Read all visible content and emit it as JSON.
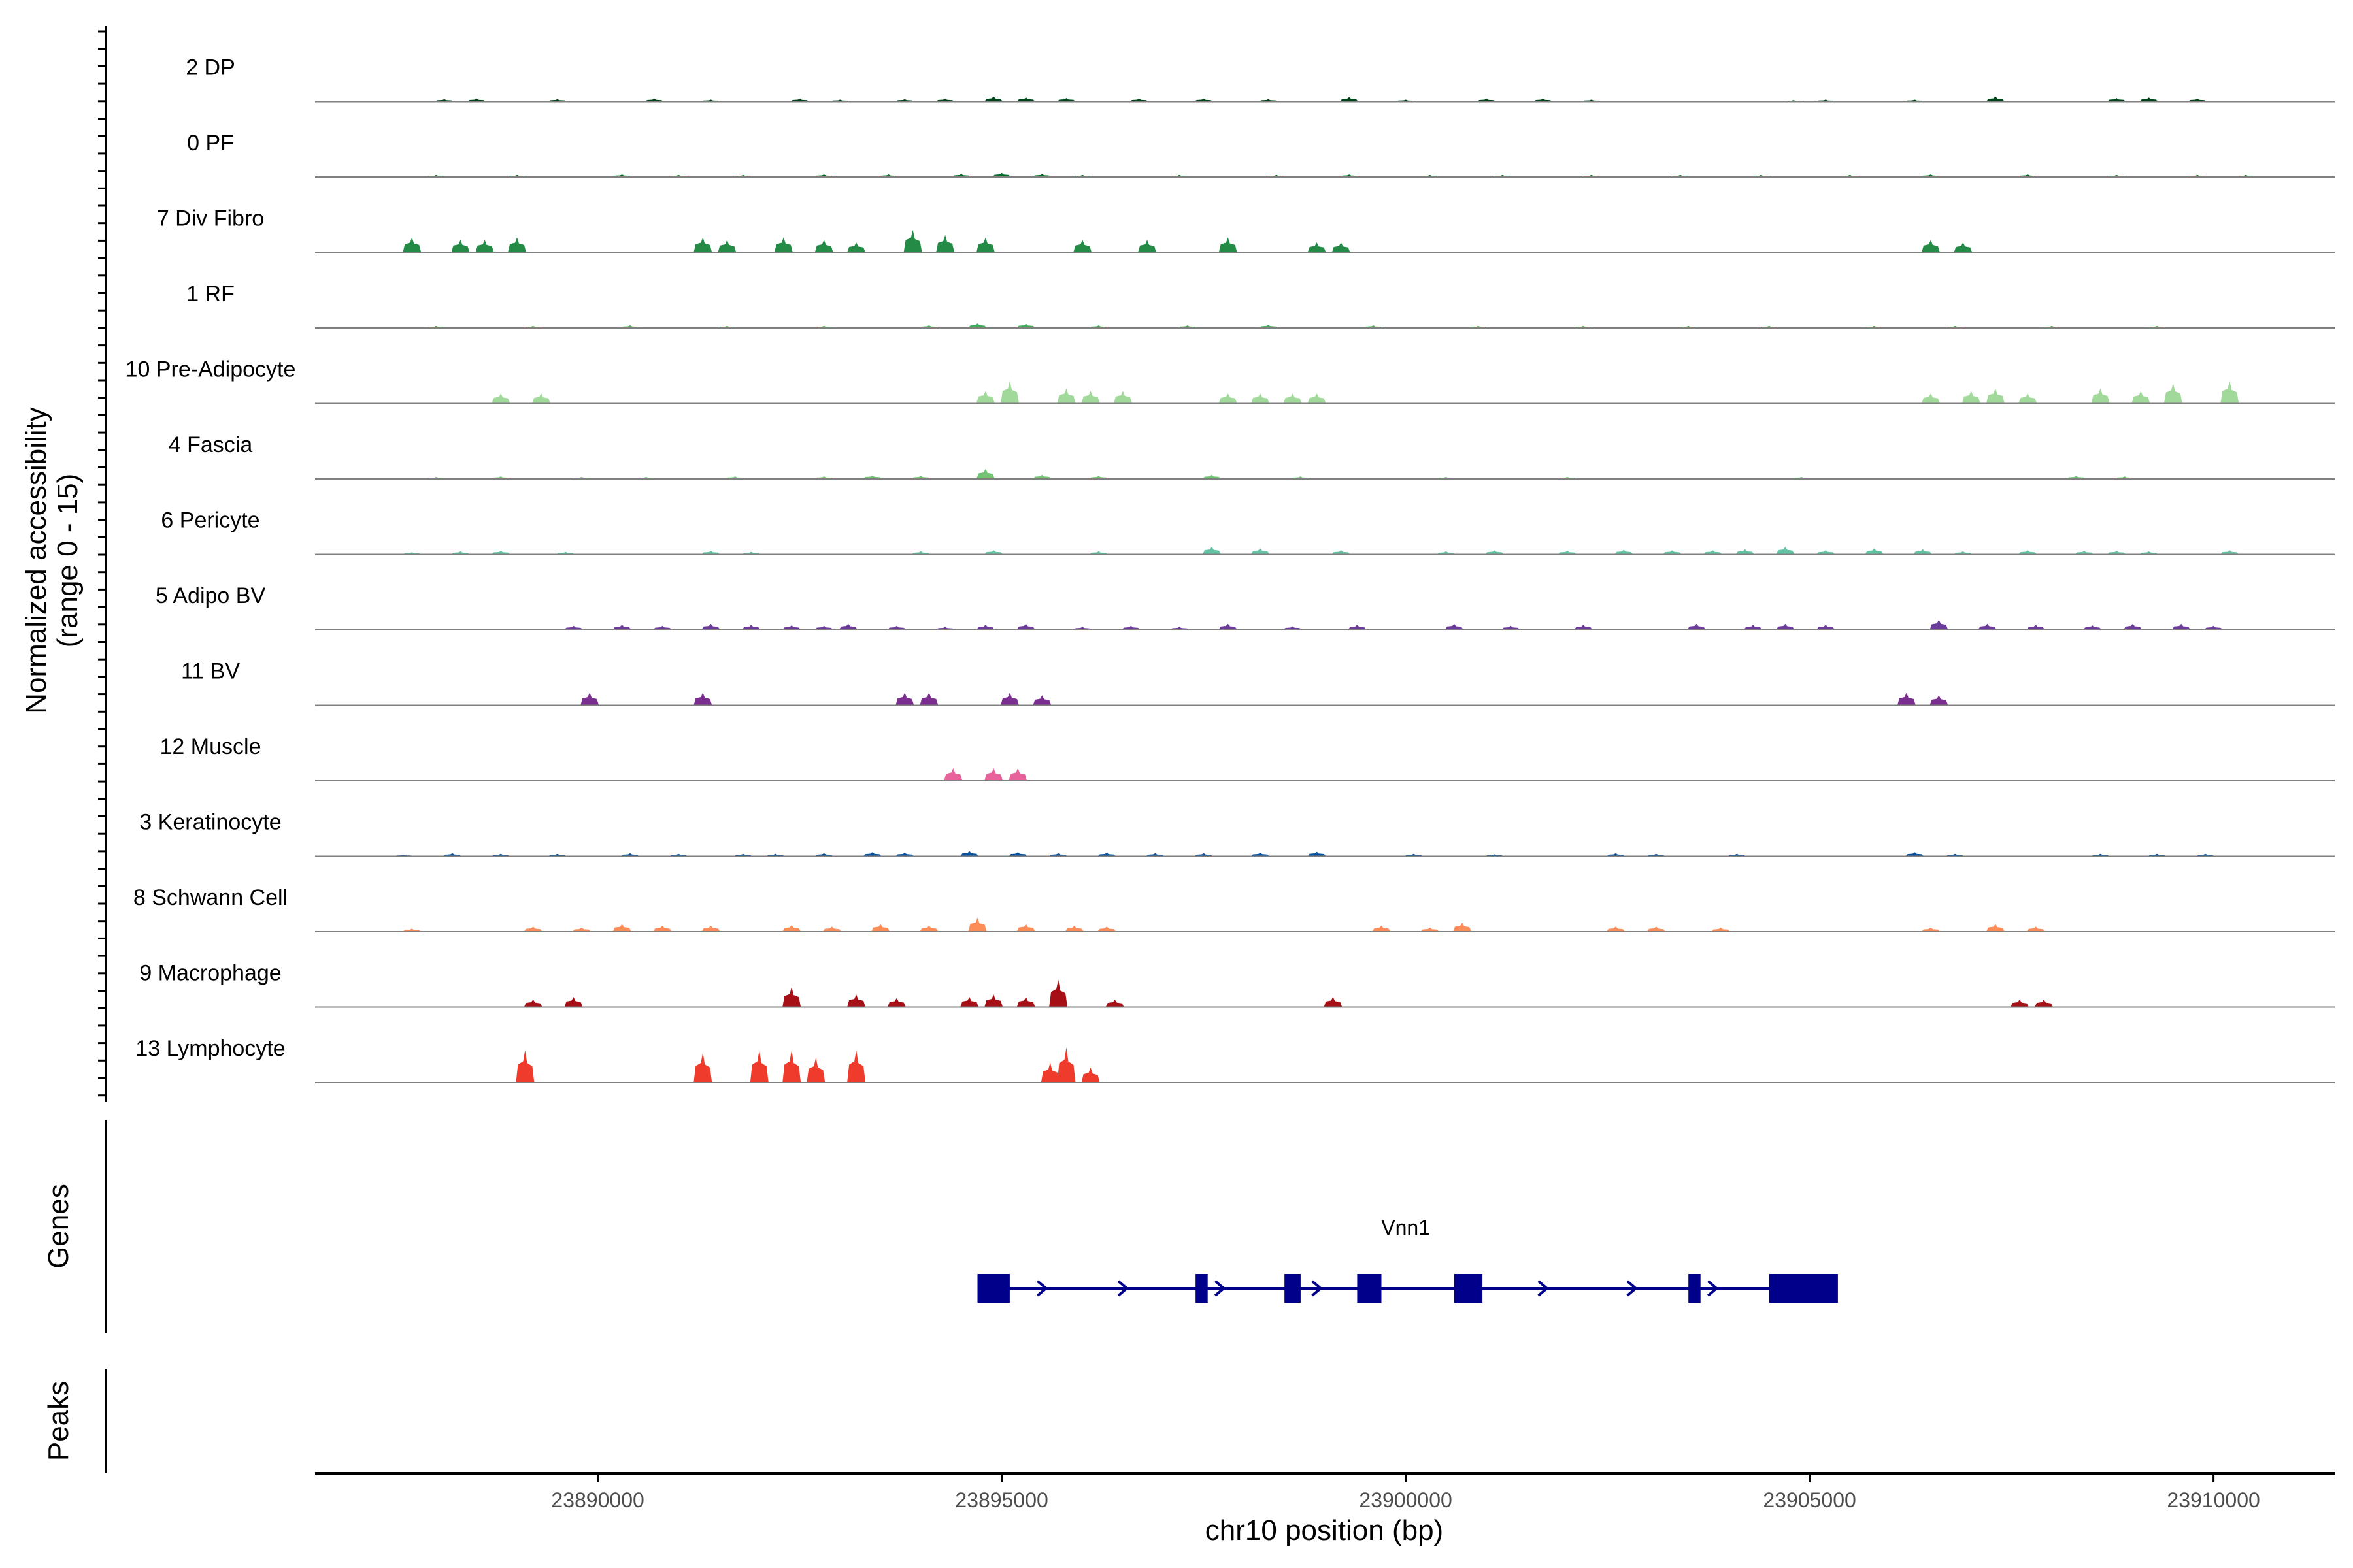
{
  "chart_data": {
    "type": "area",
    "ylabel_line1": "Normalized accessibility",
    "ylabel_line2": "(range 0 - 15)",
    "ylim": [
      0,
      15
    ],
    "genes_label": "Genes",
    "peaks_label": "Peaks",
    "xlabel": "chr10 position (bp)",
    "xlim": [
      23886500,
      23911500
    ],
    "x_ticks": [
      "23890000",
      "23895000",
      "23900000",
      "23905000",
      "23910000"
    ],
    "tracks": [
      {
        "label": "2 DP",
        "color": "#00441b",
        "peaks": [
          [
            23888100,
            0.5
          ],
          [
            23888500,
            0.6
          ],
          [
            23889500,
            0.5
          ],
          [
            23890700,
            0.6
          ],
          [
            23891400,
            0.4
          ],
          [
            23892500,
            0.6
          ],
          [
            23893000,
            0.4
          ],
          [
            23893800,
            0.5
          ],
          [
            23894300,
            0.6
          ],
          [
            23894900,
            1.0
          ],
          [
            23895300,
            0.8
          ],
          [
            23895800,
            0.7
          ],
          [
            23896700,
            0.6
          ],
          [
            23897500,
            0.6
          ],
          [
            23898300,
            0.5
          ],
          [
            23899300,
            0.9
          ],
          [
            23900000,
            0.4
          ],
          [
            23901000,
            0.6
          ],
          [
            23901700,
            0.6
          ],
          [
            23902300,
            0.4
          ],
          [
            23904800,
            0.3
          ],
          [
            23905200,
            0.4
          ],
          [
            23906300,
            0.4
          ],
          [
            23907300,
            1.0
          ],
          [
            23908800,
            0.7
          ],
          [
            23909200,
            0.8
          ],
          [
            23909800,
            0.6
          ]
        ]
      },
      {
        "label": "0 PF",
        "color": "#006d2c",
        "peaks": [
          [
            23888000,
            0.4
          ],
          [
            23889000,
            0.4
          ],
          [
            23890300,
            0.5
          ],
          [
            23891000,
            0.4
          ],
          [
            23891800,
            0.4
          ],
          [
            23892800,
            0.5
          ],
          [
            23893600,
            0.5
          ],
          [
            23894500,
            0.6
          ],
          [
            23895000,
            0.8
          ],
          [
            23895500,
            0.6
          ],
          [
            23896000,
            0.4
          ],
          [
            23897200,
            0.4
          ],
          [
            23898400,
            0.4
          ],
          [
            23899300,
            0.5
          ],
          [
            23900300,
            0.4
          ],
          [
            23901200,
            0.4
          ],
          [
            23902300,
            0.4
          ],
          [
            23903400,
            0.4
          ],
          [
            23904400,
            0.4
          ],
          [
            23905500,
            0.4
          ],
          [
            23906500,
            0.5
          ],
          [
            23907700,
            0.5
          ],
          [
            23908800,
            0.4
          ],
          [
            23909800,
            0.4
          ],
          [
            23910400,
            0.4
          ]
        ]
      },
      {
        "label": "7 Div Fibro",
        "color": "#238b45",
        "peaks": [
          [
            23887700,
            3.0
          ],
          [
            23888300,
            2.5
          ],
          [
            23888600,
            2.5
          ],
          [
            23889000,
            3.0
          ],
          [
            23891300,
            3.0
          ],
          [
            23891600,
            2.5
          ],
          [
            23892300,
            3.0
          ],
          [
            23892800,
            2.5
          ],
          [
            23893200,
            2.0
          ],
          [
            23893900,
            4.5
          ],
          [
            23894300,
            3.5
          ],
          [
            23894800,
            3.0
          ],
          [
            23896000,
            2.5
          ],
          [
            23896800,
            2.5
          ],
          [
            23897800,
            3.0
          ],
          [
            23898900,
            2.0
          ],
          [
            23899200,
            2.0
          ],
          [
            23906500,
            2.5
          ],
          [
            23906900,
            2.0
          ]
        ]
      },
      {
        "label": "1 RF",
        "color": "#41ab5d",
        "peaks": [
          [
            23888000,
            0.4
          ],
          [
            23889200,
            0.4
          ],
          [
            23890400,
            0.5
          ],
          [
            23891600,
            0.4
          ],
          [
            23892800,
            0.4
          ],
          [
            23894100,
            0.5
          ],
          [
            23894700,
            0.9
          ],
          [
            23895300,
            0.8
          ],
          [
            23896200,
            0.5
          ],
          [
            23897300,
            0.5
          ],
          [
            23898300,
            0.6
          ],
          [
            23899600,
            0.5
          ],
          [
            23900900,
            0.4
          ],
          [
            23902200,
            0.4
          ],
          [
            23903500,
            0.4
          ],
          [
            23904500,
            0.4
          ],
          [
            23905800,
            0.4
          ],
          [
            23906800,
            0.4
          ],
          [
            23908000,
            0.4
          ],
          [
            23909300,
            0.4
          ]
        ]
      },
      {
        "label": "10 Pre-Adipocyte",
        "color": "#a1d99b",
        "peaks": [
          [
            23888800,
            2.0
          ],
          [
            23889300,
            2.0
          ],
          [
            23894800,
            2.5
          ],
          [
            23895100,
            4.5
          ],
          [
            23895800,
            3.0
          ],
          [
            23896100,
            2.5
          ],
          [
            23896500,
            2.5
          ],
          [
            23897800,
            2.0
          ],
          [
            23898200,
            2.0
          ],
          [
            23898600,
            2.0
          ],
          [
            23898900,
            2.0
          ],
          [
            23906500,
            2.0
          ],
          [
            23907000,
            2.5
          ],
          [
            23907300,
            3.0
          ],
          [
            23907700,
            2.0
          ],
          [
            23908600,
            3.0
          ],
          [
            23909100,
            2.5
          ],
          [
            23909500,
            4.0
          ],
          [
            23910200,
            4.5
          ]
        ]
      },
      {
        "label": "4 Fascia",
        "color": "#74c476",
        "peaks": [
          [
            23888000,
            0.4
          ],
          [
            23888800,
            0.5
          ],
          [
            23889800,
            0.4
          ],
          [
            23890600,
            0.4
          ],
          [
            23891700,
            0.5
          ],
          [
            23892800,
            0.5
          ],
          [
            23893400,
            0.7
          ],
          [
            23894000,
            0.6
          ],
          [
            23894800,
            2.0
          ],
          [
            23895500,
            0.8
          ],
          [
            23896200,
            0.6
          ],
          [
            23897600,
            0.8
          ],
          [
            23898700,
            0.5
          ],
          [
            23900500,
            0.4
          ],
          [
            23902000,
            0.4
          ],
          [
            23904900,
            0.4
          ],
          [
            23908300,
            0.6
          ],
          [
            23908900,
            0.5
          ]
        ]
      },
      {
        "label": "6 Pericyte",
        "color": "#66c2a4",
        "peaks": [
          [
            23887700,
            0.4
          ],
          [
            23888300,
            0.6
          ],
          [
            23888800,
            0.7
          ],
          [
            23889600,
            0.5
          ],
          [
            23891400,
            0.7
          ],
          [
            23891900,
            0.5
          ],
          [
            23894000,
            0.6
          ],
          [
            23894900,
            0.8
          ],
          [
            23896200,
            0.6
          ],
          [
            23897600,
            1.5
          ],
          [
            23898200,
            1.2
          ],
          [
            23899200,
            0.8
          ],
          [
            23900500,
            0.6
          ],
          [
            23901100,
            0.8
          ],
          [
            23902000,
            0.7
          ],
          [
            23902700,
            0.9
          ],
          [
            23903300,
            0.8
          ],
          [
            23903800,
            0.8
          ],
          [
            23904200,
            1.0
          ],
          [
            23904700,
            1.5
          ],
          [
            23905200,
            0.8
          ],
          [
            23905800,
            1.2
          ],
          [
            23906400,
            1.0
          ],
          [
            23906900,
            0.6
          ],
          [
            23907700,
            0.8
          ],
          [
            23908400,
            0.7
          ],
          [
            23908800,
            0.7
          ],
          [
            23909200,
            0.6
          ],
          [
            23910200,
            0.8
          ]
        ]
      },
      {
        "label": "5 Adipo BV",
        "color": "#6a3d9a",
        "peaks": [
          [
            23889700,
            0.8
          ],
          [
            23890300,
            1.0
          ],
          [
            23890800,
            0.8
          ],
          [
            23891400,
            1.2
          ],
          [
            23891900,
            1.0
          ],
          [
            23892400,
            0.9
          ],
          [
            23892800,
            0.8
          ],
          [
            23893100,
            1.2
          ],
          [
            23893700,
            0.8
          ],
          [
            23894300,
            0.6
          ],
          [
            23894800,
            1.0
          ],
          [
            23895300,
            1.2
          ],
          [
            23896000,
            0.6
          ],
          [
            23896600,
            0.8
          ],
          [
            23897200,
            0.6
          ],
          [
            23897800,
            1.2
          ],
          [
            23898600,
            0.7
          ],
          [
            23899400,
            1.0
          ],
          [
            23900600,
            1.2
          ],
          [
            23901300,
            0.8
          ],
          [
            23902200,
            1.0
          ],
          [
            23903600,
            1.2
          ],
          [
            23904300,
            1.0
          ],
          [
            23904700,
            1.2
          ],
          [
            23905200,
            1.0
          ],
          [
            23906600,
            2.0
          ],
          [
            23907200,
            1.2
          ],
          [
            23907800,
            1.0
          ],
          [
            23908500,
            0.9
          ],
          [
            23909000,
            1.2
          ],
          [
            23909600,
            1.2
          ],
          [
            23910000,
            0.8
          ]
        ]
      },
      {
        "label": "11 BV",
        "color": "#7a2e8e",
        "peaks": [
          [
            23889900,
            2.5
          ],
          [
            23891300,
            2.5
          ],
          [
            23893800,
            2.5
          ],
          [
            23894100,
            2.5
          ],
          [
            23895100,
            2.5
          ],
          [
            23895500,
            2.0
          ],
          [
            23906200,
            2.5
          ],
          [
            23906600,
            2.0
          ]
        ]
      },
      {
        "label": "12 Muscle",
        "color": "#e7619a",
        "peaks": [
          [
            23894400,
            2.5
          ],
          [
            23894900,
            2.5
          ],
          [
            23895200,
            2.5
          ]
        ]
      },
      {
        "label": "3 Keratinocyte",
        "color": "#08519c",
        "peaks": [
          [
            23887600,
            0.3
          ],
          [
            23888200,
            0.6
          ],
          [
            23888800,
            0.5
          ],
          [
            23889500,
            0.5
          ],
          [
            23890400,
            0.6
          ],
          [
            23891000,
            0.5
          ],
          [
            23891800,
            0.5
          ],
          [
            23892200,
            0.5
          ],
          [
            23892800,
            0.6
          ],
          [
            23893400,
            0.8
          ],
          [
            23893800,
            0.7
          ],
          [
            23894600,
            1.0
          ],
          [
            23895200,
            0.8
          ],
          [
            23895700,
            0.6
          ],
          [
            23896300,
            0.7
          ],
          [
            23896900,
            0.6
          ],
          [
            23897500,
            0.6
          ],
          [
            23898200,
            0.7
          ],
          [
            23898900,
            0.9
          ],
          [
            23900100,
            0.5
          ],
          [
            23901100,
            0.4
          ],
          [
            23902600,
            0.6
          ],
          [
            23903100,
            0.5
          ],
          [
            23904100,
            0.5
          ],
          [
            23906300,
            0.8
          ],
          [
            23906800,
            0.5
          ],
          [
            23908600,
            0.5
          ],
          [
            23909300,
            0.5
          ],
          [
            23909900,
            0.5
          ]
        ]
      },
      {
        "label": "8 Schwann Cell",
        "color": "#fc8d59",
        "peaks": [
          [
            23887700,
            0.6
          ],
          [
            23889200,
            1.0
          ],
          [
            23889800,
            0.8
          ],
          [
            23890300,
            1.5
          ],
          [
            23890800,
            1.2
          ],
          [
            23891400,
            1.2
          ],
          [
            23892400,
            1.3
          ],
          [
            23892900,
            1.0
          ],
          [
            23893500,
            1.5
          ],
          [
            23894100,
            1.2
          ],
          [
            23894700,
            2.8
          ],
          [
            23895300,
            1.5
          ],
          [
            23895900,
            1.2
          ],
          [
            23896300,
            1.0
          ],
          [
            23899700,
            1.2
          ],
          [
            23900300,
            0.8
          ],
          [
            23900700,
            1.8
          ],
          [
            23902600,
            1.0
          ],
          [
            23903100,
            1.0
          ],
          [
            23903900,
            0.8
          ],
          [
            23906500,
            0.8
          ],
          [
            23907300,
            1.5
          ],
          [
            23907800,
            1.0
          ]
        ]
      },
      {
        "label": "9 Macrophage",
        "color": "#a50f15",
        "peaks": [
          [
            23889200,
            1.5
          ],
          [
            23889700,
            2.0
          ],
          [
            23892400,
            4.0
          ],
          [
            23893200,
            2.5
          ],
          [
            23893700,
            1.8
          ],
          [
            23894600,
            2.0
          ],
          [
            23894900,
            2.5
          ],
          [
            23895300,
            2.0
          ],
          [
            23895700,
            5.5
          ],
          [
            23896400,
            1.5
          ],
          [
            23899100,
            2.0
          ],
          [
            23907600,
            1.5
          ],
          [
            23907900,
            1.5
          ]
        ]
      },
      {
        "label": "13 Lymphocyte",
        "color": "#ef3b2c",
        "peaks": [
          [
            23889100,
            6.5
          ],
          [
            23891300,
            6.0
          ],
          [
            23892000,
            6.5
          ],
          [
            23892400,
            6.5
          ],
          [
            23892700,
            5.0
          ],
          [
            23893200,
            6.5
          ],
          [
            23895600,
            4.0
          ],
          [
            23895800,
            7.0
          ],
          [
            23896100,
            3.0
          ]
        ]
      }
    ],
    "genes": [
      {
        "name": "Vnn1",
        "start": 23894700,
        "end": 23905300,
        "exons": [
          [
            23894700,
            23895100
          ],
          [
            23897400,
            23897550
          ],
          [
            23898500,
            23898700
          ],
          [
            23899400,
            23899700
          ],
          [
            23900600,
            23900950
          ],
          [
            23903500,
            23903650
          ],
          [
            23904500,
            23905350
          ]
        ],
        "arrows": [
          23894800,
          23895500,
          23896500,
          23897700,
          23898900,
          23901700,
          23902800,
          23903800
        ]
      }
    ]
  }
}
